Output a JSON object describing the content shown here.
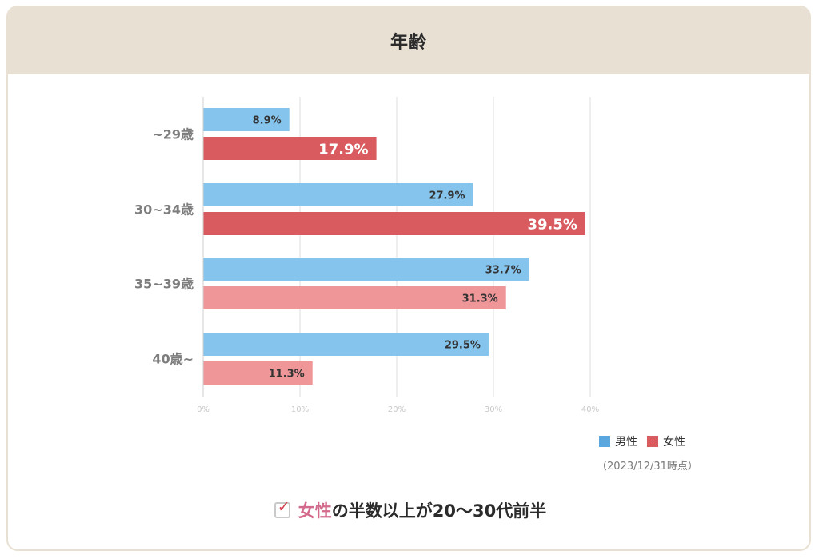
{
  "header": {
    "title": "年齢"
  },
  "legend": [
    {
      "label": "男性",
      "color": "#5aa7e0"
    },
    {
      "label": "女性",
      "color": "#d95b5f"
    }
  ],
  "as_of": "（2023/12/31時点）",
  "note": {
    "highlight": "女性",
    "rest": "の半数以上が20〜30代前半"
  },
  "icons": {
    "check": "checkbox-checked-icon"
  },
  "chart_data": {
    "type": "bar",
    "orientation": "horizontal",
    "title": "年齢",
    "categories": [
      "~29歳",
      "30~34歳",
      "35~39歳",
      "40歳~"
    ],
    "series": [
      {
        "name": "男性",
        "values": [
          8.9,
          27.9,
          33.7,
          29.5
        ],
        "color": "#85c4ec"
      },
      {
        "name": "女性",
        "values": [
          17.9,
          39.5,
          31.3,
          11.3
        ],
        "colors": [
          "#d95b5f",
          "#d95b5f",
          "#ef9699",
          "#ef9699"
        ]
      }
    ],
    "value_labels": {
      "男性": [
        "8.9%",
        "27.9%",
        "33.7%",
        "29.5%"
      ],
      "女性": [
        "17.9%",
        "39.5%",
        "31.3%",
        "11.3%"
      ]
    },
    "x_ticks": [
      "0%",
      "10%",
      "20%",
      "30%",
      "40%"
    ],
    "xlim": [
      0,
      40
    ],
    "grid": true,
    "legend_position": "bottom-right"
  }
}
